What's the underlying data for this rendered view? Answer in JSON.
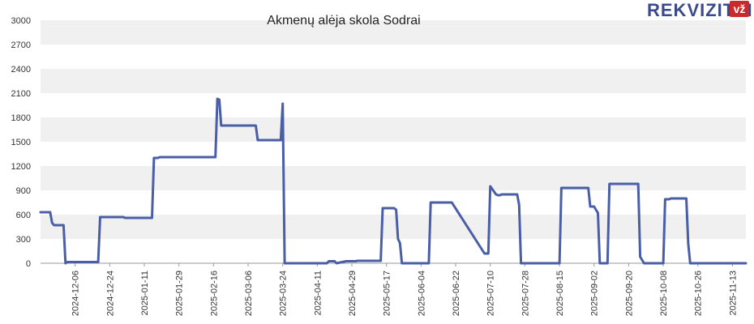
{
  "brand": {
    "name": "REKVIZITAI",
    "badge": "vž",
    "color": "#3b4a8c",
    "badge_color": "#cc2a2a"
  },
  "chart_data": {
    "type": "line",
    "title": "Akmenų alėja skola Sodrai",
    "xlabel": "",
    "ylabel": "",
    "ylim": [
      0,
      3000
    ],
    "yticks": [
      0,
      300,
      600,
      900,
      1200,
      1500,
      1800,
      2100,
      2400,
      2700,
      3000
    ],
    "xlim": [
      "2024-11-18",
      "2025-11-20"
    ],
    "xticks": [
      "2024-12-06",
      "2024-12-24",
      "2025-01-11",
      "2025-01-29",
      "2025-02-16",
      "2025-03-06",
      "2025-03-24",
      "2025-04-11",
      "2025-04-29",
      "2025-05-17",
      "2025-06-04",
      "2025-06-22",
      "2025-07-10",
      "2025-07-28",
      "2025-08-15",
      "2025-09-02",
      "2025-09-20",
      "2025-10-08",
      "2025-10-26",
      "2025-11-13"
    ],
    "grid": "horizontal bands",
    "line_color": "#4a5ea8",
    "series": [
      {
        "x": [
          "2024-11-18",
          "2024-11-23",
          "2024-11-24",
          "2024-11-25",
          "2024-11-30",
          "2024-12-01",
          "2024-12-02",
          "2024-12-18",
          "2024-12-19",
          "2024-12-31",
          "2025-01-01",
          "2025-01-15",
          "2025-01-16",
          "2025-01-18",
          "2025-01-19",
          "2025-02-17",
          "2025-02-18",
          "2025-02-19",
          "2025-02-20",
          "2025-03-10",
          "2025-03-11",
          "2025-03-23",
          "2025-03-24",
          "2025-03-25",
          "2025-04-16",
          "2025-04-17",
          "2025-04-20",
          "2025-04-21",
          "2025-04-26",
          "2025-05-01",
          "2025-05-02",
          "2025-05-14",
          "2025-05-15",
          "2025-05-21",
          "2025-05-22",
          "2025-05-23",
          "2025-05-24",
          "2025-05-25",
          "2025-06-08",
          "2025-06-09",
          "2025-06-19",
          "2025-06-20",
          "2025-07-07",
          "2025-07-08",
          "2025-07-09",
          "2025-07-10",
          "2025-07-13",
          "2025-07-14",
          "2025-07-15",
          "2025-07-16",
          "2025-07-24",
          "2025-07-25",
          "2025-07-26",
          "2025-07-27",
          "2025-08-15",
          "2025-08-16",
          "2025-08-30",
          "2025-08-31",
          "2025-09-02",
          "2025-09-04",
          "2025-09-05",
          "2025-09-09",
          "2025-09-10",
          "2025-09-25",
          "2025-09-26",
          "2025-09-28",
          "2025-10-08",
          "2025-10-09",
          "2025-10-11",
          "2025-10-12",
          "2025-10-20",
          "2025-10-21",
          "2025-10-22",
          "2025-11-20"
        ],
        "y": [
          630,
          630,
          500,
          470,
          470,
          0,
          15,
          15,
          570,
          570,
          560,
          560,
          1300,
          1300,
          1310,
          1310,
          2030,
          2020,
          1700,
          1700,
          1520,
          1520,
          1970,
          0,
          0,
          25,
          25,
          0,
          25,
          25,
          30,
          30,
          680,
          680,
          660,
          300,
          250,
          0,
          0,
          750,
          750,
          750,
          120,
          120,
          120,
          950,
          850,
          840,
          840,
          850,
          850,
          720,
          0,
          0,
          0,
          930,
          930,
          700,
          700,
          620,
          0,
          0,
          980,
          980,
          80,
          0,
          0,
          790,
          790,
          800,
          800,
          240,
          0,
          0
        ]
      }
    ]
  }
}
